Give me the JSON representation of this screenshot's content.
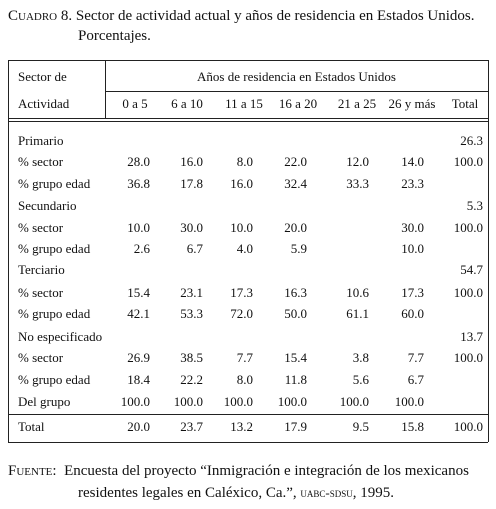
{
  "header": {
    "label": "Cuadro 8.",
    "title": "Sector de actividad actual y años de residencia en Estados Unidos. Porcentajes."
  },
  "table": {
    "stub_header": [
      "Sector de",
      "Actividad"
    ],
    "spanner": "Años de residencia en Estados Unidos",
    "columns": [
      "0 a 5",
      "6 a 10",
      "11 a 15",
      "16 a 20",
      "21 a 25",
      "26 y más",
      "Total"
    ],
    "rows": [
      {
        "label": "Primario",
        "values": [
          null,
          null,
          null,
          null,
          null,
          null,
          "26.3"
        ]
      },
      {
        "label": "% sector",
        "values": [
          "28.0",
          "16.0",
          "8.0",
          "22.0",
          "12.0",
          "14.0",
          "100.0"
        ]
      },
      {
        "label": "% grupo edad",
        "values": [
          "36.8",
          "17.8",
          "16.0",
          "32.4",
          "33.3",
          "23.3",
          null
        ]
      },
      {
        "label": "Secundario",
        "values": [
          null,
          null,
          null,
          null,
          null,
          null,
          "5.3"
        ]
      },
      {
        "label": "% sector",
        "values": [
          "10.0",
          "30.0",
          "10.0",
          "20.0",
          null,
          "30.0",
          "100.0"
        ]
      },
      {
        "label": "% grupo edad",
        "values": [
          "2.6",
          "6.7",
          "4.0",
          "5.9",
          null,
          "10.0",
          null
        ]
      },
      {
        "label": "Terciario",
        "values": [
          null,
          null,
          null,
          null,
          null,
          null,
          "54.7"
        ]
      },
      {
        "label": "% sector",
        "values": [
          "15.4",
          "23.1",
          "17.3",
          "16.3",
          "10.6",
          "17.3",
          "100.0"
        ]
      },
      {
        "label": "% grupo edad",
        "values": [
          "42.1",
          "53.3",
          "72.0",
          "50.0",
          "61.1",
          "60.0",
          null
        ]
      },
      {
        "label": "No especificado",
        "values": [
          null,
          null,
          null,
          null,
          null,
          null,
          "13.7"
        ]
      },
      {
        "label": "% sector",
        "values": [
          "26.9",
          "38.5",
          "7.7",
          "15.4",
          "3.8",
          "7.7",
          "100.0"
        ]
      },
      {
        "label": "% grupo edad",
        "values": [
          "18.4",
          "22.2",
          "8.0",
          "11.8",
          "5.6",
          "6.7",
          null
        ]
      },
      {
        "label": "Del grupo",
        "values": [
          "100.0",
          "100.0",
          "100.0",
          "100.0",
          "100.0",
          "100.0",
          null
        ]
      },
      {
        "label": "Total",
        "values": [
          "20.0",
          "23.7",
          "13.2",
          "17.9",
          "9.5",
          "15.8",
          "100.0"
        ]
      }
    ]
  },
  "footer": {
    "label": "Fuente:",
    "text_1": "Encuesta del proyecto “Inmigración e integración de los mexicanos residentes legales en  Caléxico, Ca.”,",
    "org": "uabc-sdsu",
    "year": ", 1995."
  }
}
